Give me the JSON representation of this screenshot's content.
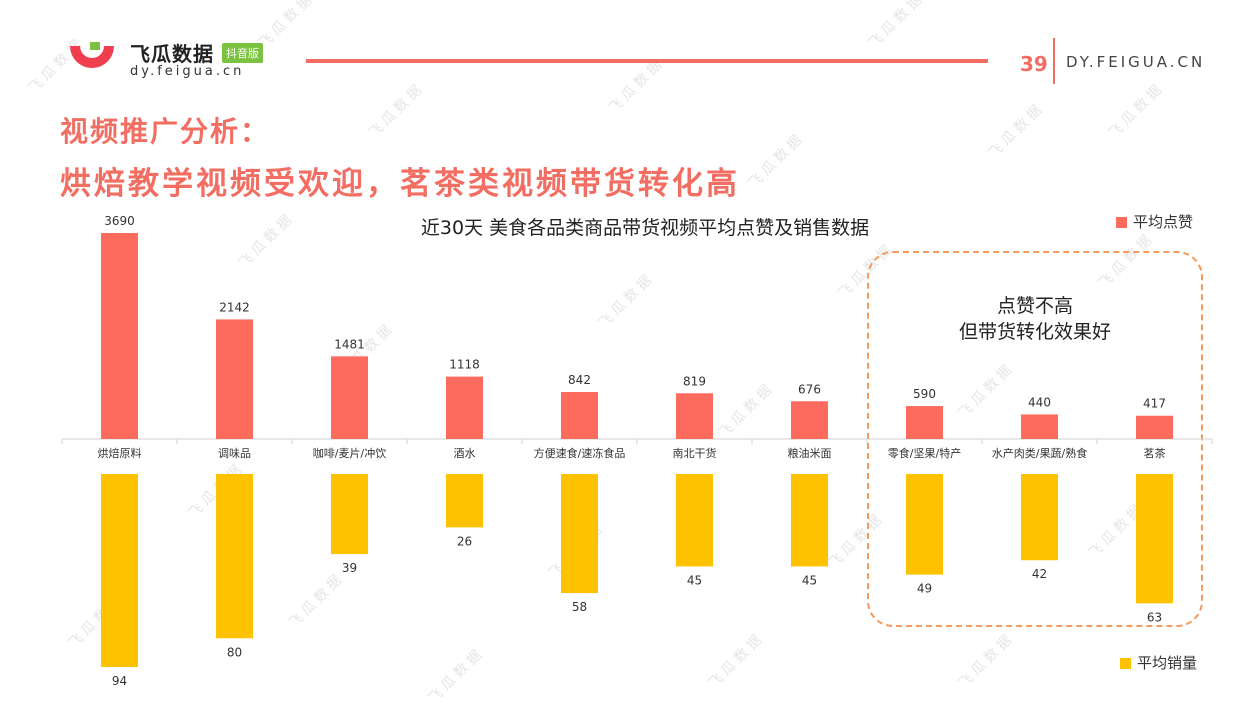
{
  "header": {
    "brand": "飞瓜数据",
    "badge": "抖音版",
    "brand_url": "dy.feigua.cn",
    "page_number": "39",
    "site": "DY.FEIGUA.CN"
  },
  "title_line1": "视频推广分析：",
  "title_line2": "烘焙教学视频受欢迎，茗茶类视频带货转化高",
  "callout": {
    "line1": "点赞不高",
    "line2": "但带货转化效果好"
  },
  "colors": {
    "likes": "#fd6b5f",
    "sales": "#ffc200",
    "accent": "#f26e63",
    "callout_border": "#f39a5c"
  },
  "watermark": "飞瓜数据",
  "chart_data": {
    "type": "bar",
    "title": "近30天 美食各品类商品带货视频平均点赞及销售数据",
    "categories": [
      "烘焙原料",
      "调味品",
      "咖啡/麦片/冲饮",
      "酒水",
      "方便速食/速冻食品",
      "南北干货",
      "粮油米面",
      "零食/坚果/特产",
      "水产肉类/果蔬/熟食",
      "茗茶"
    ],
    "series": [
      {
        "name": "平均点赞",
        "values": [
          3690,
          2142,
          1481,
          1118,
          842,
          819,
          676,
          590,
          440,
          417
        ]
      },
      {
        "name": "平均销量",
        "values": [
          94,
          80,
          39,
          26,
          58,
          45,
          45,
          49,
          42,
          63
        ]
      }
    ],
    "legend": [
      "top-right",
      "bottom-right"
    ]
  }
}
